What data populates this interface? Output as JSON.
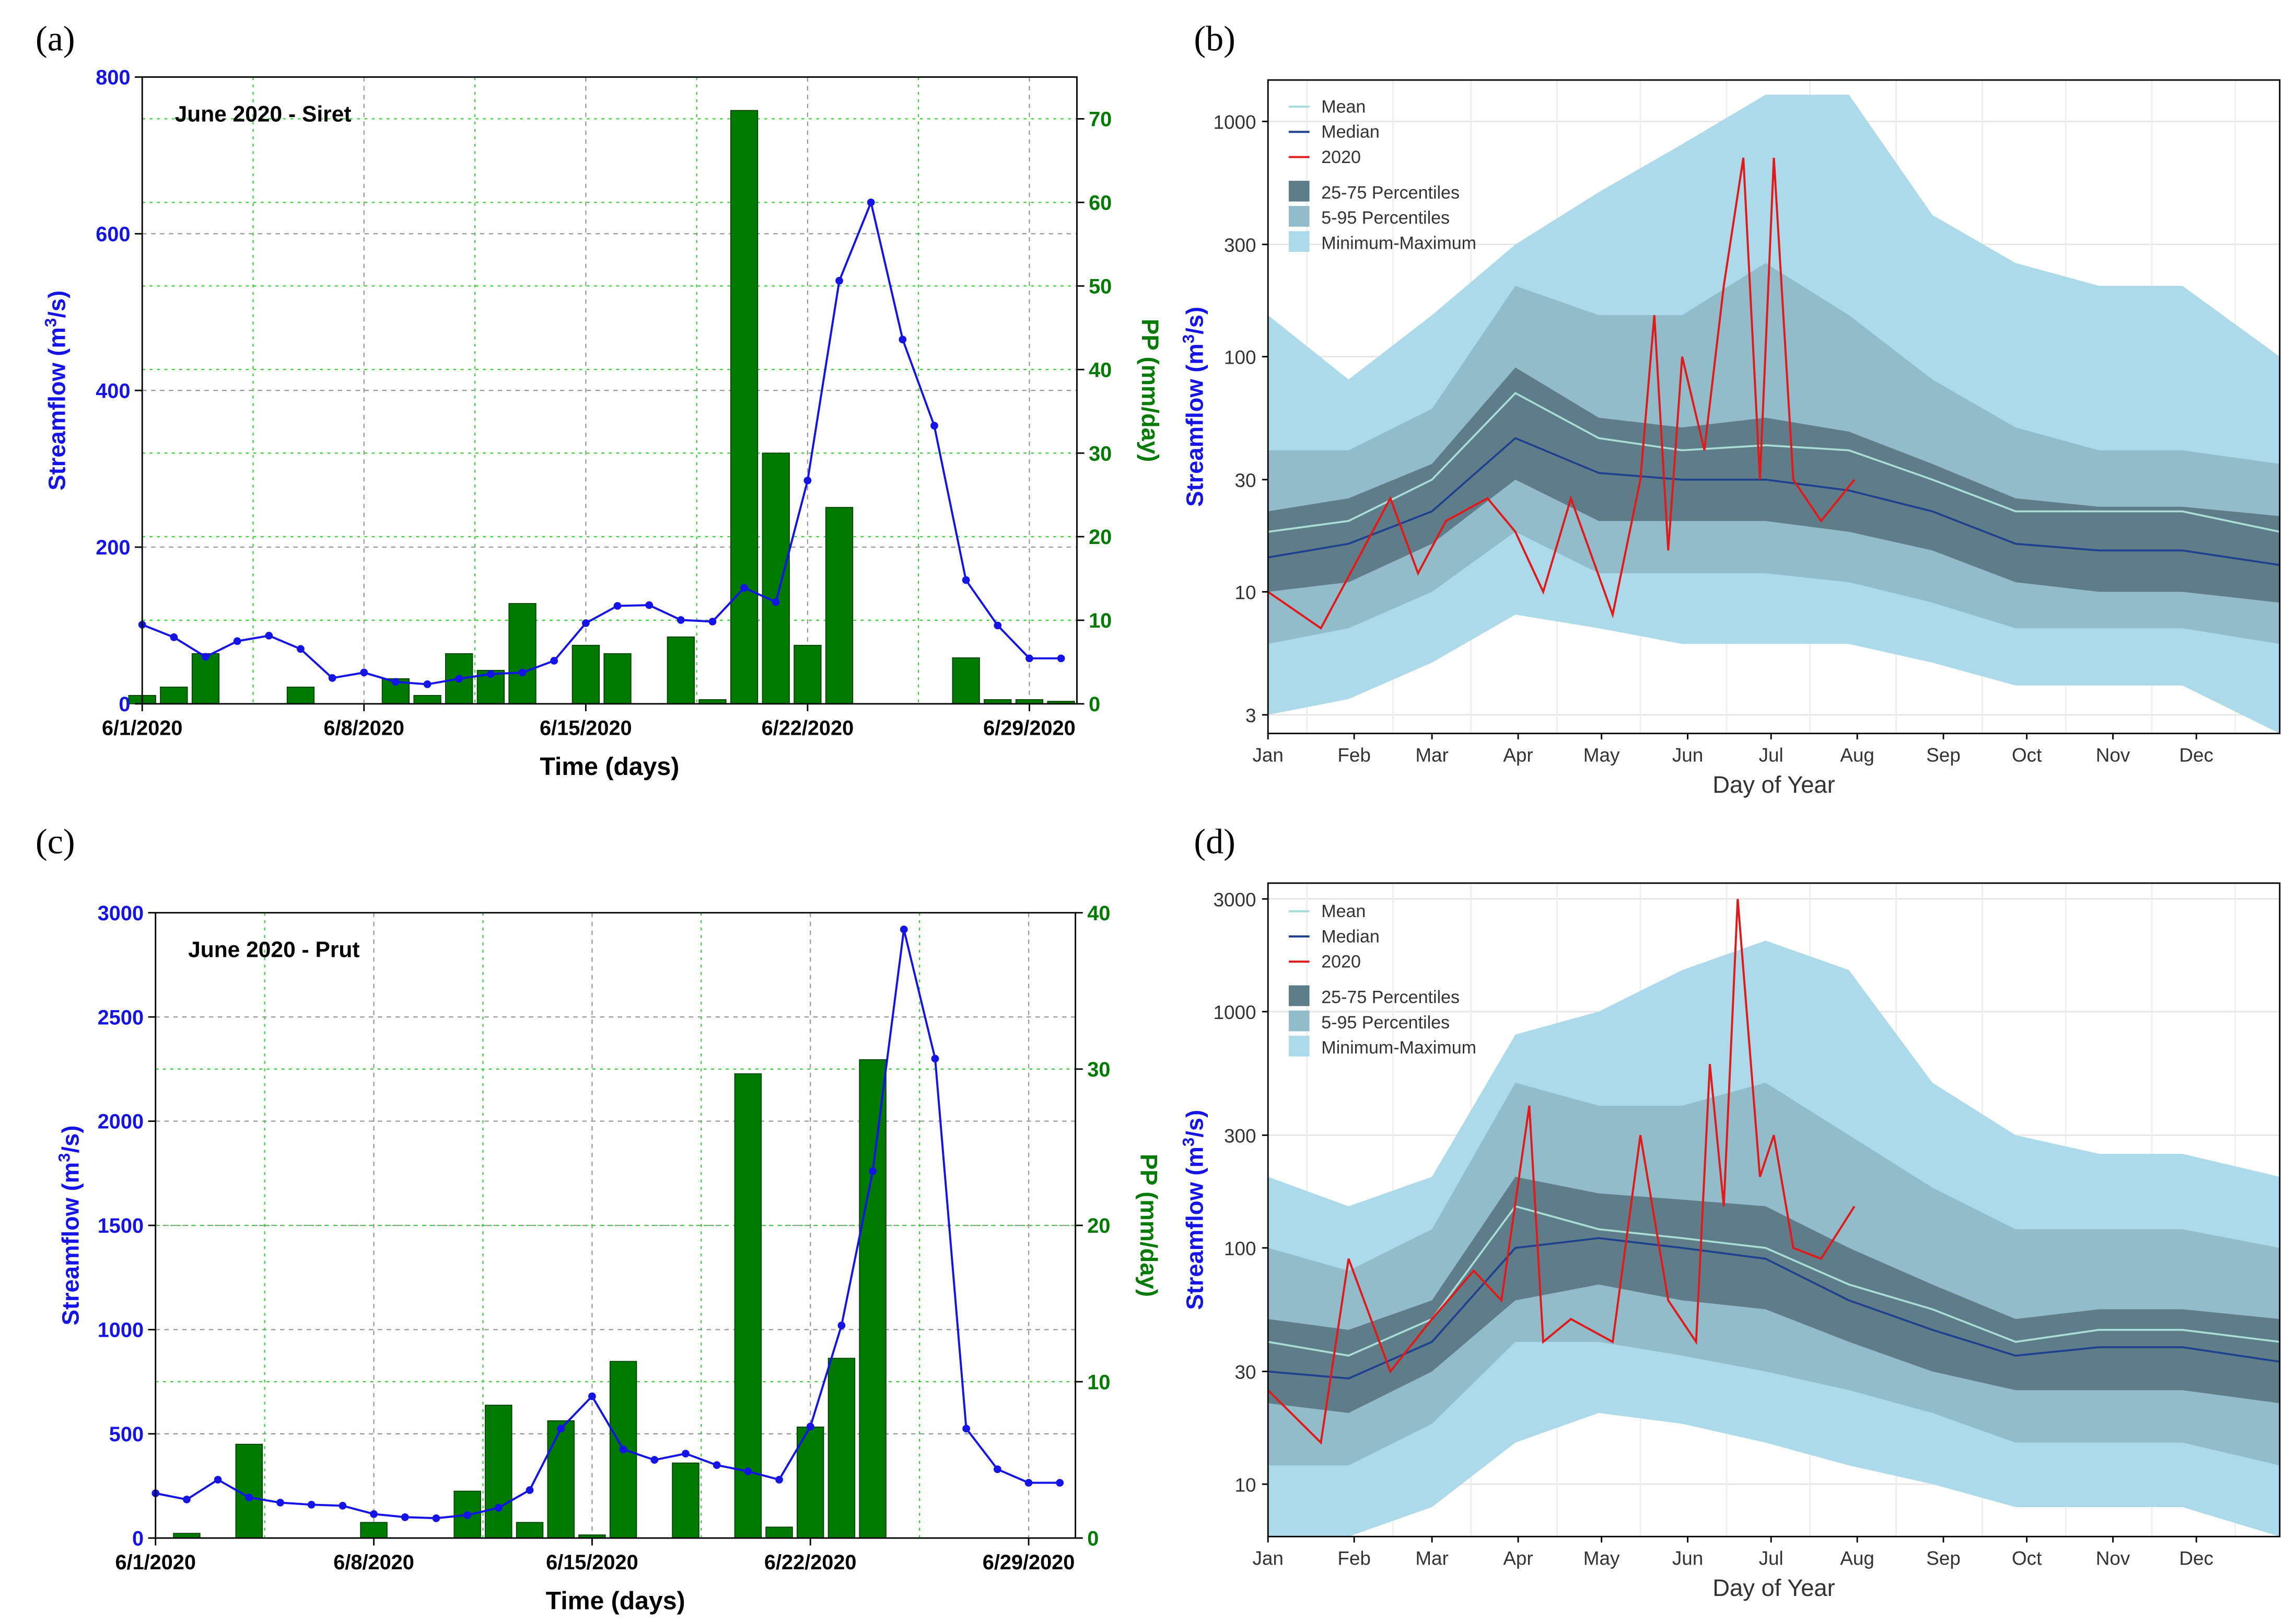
{
  "panel_labels": {
    "a": "(a)",
    "b": "(b)",
    "c": "(c)",
    "d": "(d)"
  },
  "colors": {
    "streamflow": "#1414e6",
    "precip": "#007a00",
    "mean": "#a8ddd8",
    "median": "#1f3f8f",
    "y2020": "#e01a1a",
    "p25_75": "#5f7d88",
    "p5_95": "#93bccb",
    "minmax": "#acdaea"
  },
  "chart_data": [
    {
      "panel": "a",
      "type": "bar",
      "title": "June 2020 - Siret",
      "xlabel": "Time (days)",
      "ylabel": "Streamflow (m3/s)",
      "ylabel_prefix": "Streamflow (m",
      "ylabel_sup": "3",
      "ylabel_suffix": "/s)",
      "y2label": "PP (mm/day)",
      "xtick_labels": [
        "6/1/2020",
        "6/8/2020",
        "6/15/2020",
        "6/22/2020",
        "6/29/2020"
      ],
      "xtick_days": [
        1,
        8,
        15,
        22,
        29
      ],
      "xlim": [
        1,
        30.5
      ],
      "ylim": [
        0,
        800
      ],
      "yticks": [
        0,
        200,
        400,
        600,
        800
      ],
      "y2lim": [
        0,
        75
      ],
      "y2ticks": [
        0,
        10,
        20,
        30,
        40,
        50,
        60,
        70
      ],
      "series": [
        {
          "axis": "left",
          "kind": "line",
          "x": [
            1,
            2,
            3,
            4,
            5,
            6,
            7,
            8,
            9,
            10,
            11,
            12,
            13,
            14,
            15,
            16,
            17,
            18,
            19,
            20,
            21,
            22,
            23,
            24,
            25,
            26,
            27,
            28,
            29,
            30
          ],
          "values": [
            101,
            85,
            60,
            80,
            87,
            70,
            33,
            40,
            28,
            25,
            32,
            38,
            40,
            55,
            103,
            125,
            126,
            107,
            105,
            148,
            130,
            285,
            540,
            640,
            465,
            355,
            158,
            100,
            58,
            58
          ]
        },
        {
          "axis": "right",
          "kind": "bar",
          "x": [
            1,
            2,
            3,
            6,
            9,
            10,
            11,
            12,
            13,
            15,
            16,
            18,
            19,
            20,
            21,
            22,
            23,
            27,
            28,
            29,
            30
          ],
          "values": [
            1,
            2,
            6,
            2,
            3,
            1,
            6,
            4,
            12,
            7,
            6,
            8,
            0.5,
            71,
            30,
            7,
            23.5,
            5.5,
            0.5,
            0.5,
            0.3
          ]
        }
      ]
    },
    {
      "panel": "b",
      "type": "area",
      "xlabel": "Day of Year",
      "ylabel": "Streamflow (m3/s)",
      "ylabel_prefix": "Streamflow (m",
      "ylabel_sup": "3",
      "ylabel_suffix": "/s)",
      "yscale": "log",
      "ylim": [
        2.5,
        1500
      ],
      "yticks": [
        3,
        10,
        30,
        100,
        300,
        1000
      ],
      "xtick_labels": [
        "Jan",
        "Feb",
        "Mar",
        "Apr",
        "May",
        "Jun",
        "Jul",
        "Aug",
        "Sep",
        "Oct",
        "Nov",
        "Dec"
      ],
      "legend_lines": [
        "Mean",
        "Median",
        "2020"
      ],
      "legend_bands": [
        "25-75 Percentiles",
        "5-95 Percentiles",
        "Minimum-Maximum"
      ],
      "doy": [
        1,
        30,
        60,
        90,
        120,
        150,
        180,
        210,
        240,
        270,
        300,
        330,
        365
      ],
      "mean": [
        18,
        20,
        30,
        70,
        45,
        40,
        42,
        40,
        30,
        22,
        22,
        22,
        18
      ],
      "median": [
        14,
        16,
        22,
        45,
        32,
        30,
        30,
        27,
        22,
        16,
        15,
        15,
        13
      ],
      "p25_75_low": [
        10,
        11,
        16,
        30,
        20,
        20,
        20,
        18,
        15,
        11,
        10,
        10,
        9
      ],
      "p25_75_high": [
        22,
        25,
        35,
        90,
        55,
        50,
        55,
        48,
        35,
        25,
        23,
        23,
        21
      ],
      "p5_95_low": [
        6,
        7,
        10,
        18,
        12,
        12,
        12,
        11,
        9,
        7,
        7,
        7,
        6
      ],
      "p5_95_high": [
        40,
        40,
        60,
        200,
        150,
        150,
        250,
        150,
        80,
        50,
        40,
        40,
        35
      ],
      "min": [
        3,
        3.5,
        5,
        8,
        7,
        6,
        6,
        6,
        5,
        4,
        4,
        4,
        2.5
      ],
      "max": [
        150,
        80,
        150,
        300,
        500,
        800,
        1300,
        1300,
        400,
        250,
        200,
        200,
        100
      ],
      "y2020_doy": [
        1,
        20,
        35,
        45,
        55,
        65,
        80,
        90,
        100,
        110,
        125,
        135,
        140,
        145,
        150,
        158,
        165,
        172,
        178,
        183,
        190,
        200,
        212
      ],
      "y2020": [
        10,
        7,
        15,
        25,
        12,
        20,
        25,
        18,
        10,
        25,
        8,
        30,
        150,
        15,
        100,
        40,
        200,
        700,
        30,
        700,
        30,
        20,
        30
      ]
    },
    {
      "panel": "c",
      "type": "bar",
      "title": "June 2020 - Prut",
      "xlabel": "Time (days)",
      "ylabel": "Streamflow (m3/s)",
      "ylabel_prefix": "Streamflow (m",
      "ylabel_sup": "3",
      "ylabel_suffix": "/s)",
      "y2label": "PP (mm/day)",
      "xtick_labels": [
        "6/1/2020",
        "6/8/2020",
        "6/15/2020",
        "6/22/2020",
        "6/29/2020"
      ],
      "xtick_days": [
        1,
        8,
        15,
        22,
        29
      ],
      "xlim": [
        1,
        30.5
      ],
      "ylim": [
        0,
        3000
      ],
      "yticks": [
        0,
        500,
        1000,
        1500,
        2000,
        2500,
        3000
      ],
      "y2lim": [
        0,
        40
      ],
      "y2ticks": [
        0,
        10,
        20,
        30,
        40
      ],
      "series": [
        {
          "axis": "left",
          "kind": "line",
          "x": [
            1,
            2,
            3,
            4,
            5,
            6,
            7,
            8,
            9,
            10,
            11,
            12,
            13,
            14,
            15,
            16,
            17,
            18,
            19,
            20,
            21,
            22,
            23,
            24,
            25,
            26,
            27,
            28,
            29,
            30
          ],
          "values": [
            215,
            185,
            280,
            195,
            170,
            160,
            155,
            115,
            100,
            95,
            110,
            145,
            230,
            525,
            680,
            425,
            375,
            405,
            350,
            320,
            280,
            535,
            1020,
            1760,
            2920,
            2300,
            525,
            330,
            265,
            265
          ]
        },
        {
          "axis": "right",
          "kind": "bar",
          "x": [
            2,
            4,
            8,
            11,
            12,
            13,
            14,
            15,
            16,
            18,
            20,
            21,
            22,
            23,
            24
          ],
          "values": [
            0.3,
            6,
            1,
            3,
            8.5,
            1,
            7.5,
            0.2,
            11.3,
            4.8,
            29.7,
            0.7,
            7.1,
            11.5,
            30.6
          ]
        }
      ]
    },
    {
      "panel": "d",
      "type": "area",
      "xlabel": "Day of Year",
      "ylabel": "Streamflow (m3/s)",
      "ylabel_prefix": "Streamflow (m",
      "ylabel_sup": "3",
      "ylabel_suffix": "/s)",
      "yscale": "log",
      "ylim": [
        6,
        3500
      ],
      "yticks": [
        10,
        30,
        100,
        300,
        1000,
        3000
      ],
      "xtick_labels": [
        "Jan",
        "Feb",
        "Mar",
        "Apr",
        "May",
        "Jun",
        "Jul",
        "Aug",
        "Sep",
        "Oct",
        "Nov",
        "Dec"
      ],
      "legend_lines": [
        "Mean",
        "Median",
        "2020"
      ],
      "legend_bands": [
        "25-75 Percentiles",
        "5-95 Percentiles",
        "Minimum-Maximum"
      ],
      "doy": [
        1,
        30,
        60,
        90,
        120,
        150,
        180,
        210,
        240,
        270,
        300,
        330,
        365
      ],
      "mean": [
        40,
        35,
        50,
        150,
        120,
        110,
        100,
        70,
        55,
        40,
        45,
        45,
        40
      ],
      "median": [
        30,
        28,
        40,
        100,
        110,
        100,
        90,
        60,
        45,
        35,
        38,
        38,
        33
      ],
      "p25_75_low": [
        22,
        20,
        30,
        60,
        70,
        60,
        55,
        40,
        30,
        25,
        25,
        25,
        22
      ],
      "p25_75_high": [
        50,
        45,
        60,
        200,
        170,
        160,
        150,
        100,
        70,
        50,
        55,
        55,
        50
      ],
      "p5_95_low": [
        12,
        12,
        18,
        40,
        40,
        35,
        30,
        25,
        20,
        15,
        15,
        15,
        12
      ],
      "p5_95_high": [
        100,
        80,
        120,
        500,
        400,
        400,
        500,
        300,
        180,
        120,
        120,
        120,
        100
      ],
      "min": [
        6,
        6,
        8,
        15,
        20,
        18,
        15,
        12,
        10,
        8,
        8,
        8,
        6
      ],
      "max": [
        200,
        150,
        200,
        800,
        1000,
        1500,
        2000,
        1500,
        500,
        300,
        250,
        250,
        200
      ],
      "y2020_doy": [
        1,
        20,
        30,
        45,
        60,
        75,
        85,
        95,
        100,
        110,
        125,
        135,
        145,
        155,
        160,
        165,
        170,
        178,
        183,
        190,
        200,
        212
      ],
      "y2020": [
        25,
        15,
        90,
        30,
        50,
        80,
        60,
        400,
        40,
        50,
        40,
        300,
        60,
        40,
        600,
        150,
        3000,
        200,
        300,
        100,
        90,
        150
      ]
    }
  ]
}
